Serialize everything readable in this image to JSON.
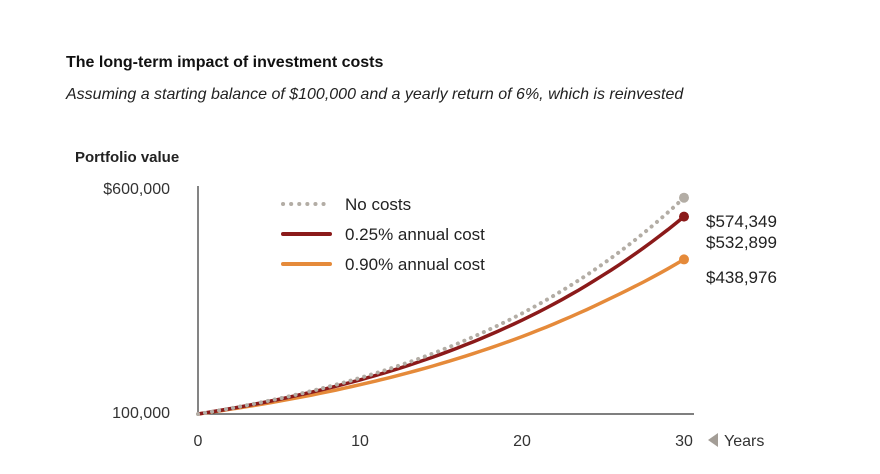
{
  "chart_data": {
    "type": "line",
    "title": "The long-term impact of investment costs",
    "subtitle": "Assuming a starting balance of $100,000 and a yearly return of 6%, which is reinvested",
    "ylabel": "Portfolio value",
    "xlabel": "Years",
    "xlim": [
      0,
      30
    ],
    "ylim": [
      100000,
      600000
    ],
    "x_ticks": [
      0,
      10,
      20,
      30
    ],
    "x_tick_labels": [
      "0",
      "10",
      "20",
      "30"
    ],
    "y_tick_labels": [
      "100,000",
      "$600,000"
    ],
    "y_ticks": [
      100000,
      600000
    ],
    "grid": false,
    "legend_position": "top-left",
    "series": [
      {
        "name": "No costs",
        "style": "dotted",
        "color": "#b3ada5",
        "x": [
          0,
          5,
          10,
          15,
          20,
          25,
          30
        ],
        "values": [
          100000,
          133823,
          179085,
          239656,
          320714,
          429187,
          574349
        ],
        "end_label": "$574,349"
      },
      {
        "name": "0.25% annual cost",
        "style": "solid",
        "color": "#8b1a1a",
        "x": [
          0,
          5,
          10,
          15,
          20,
          25,
          30
        ],
        "values": [
          100000,
          132235,
          174861,
          231227,
          305764,
          404328,
          532899
        ],
        "end_label": "$532,899"
      },
      {
        "name": "0.90% annual cost",
        "style": "solid",
        "color": "#e58a3a",
        "x": [
          0,
          5,
          10,
          15,
          20,
          25,
          30
        ],
        "values": [
          100000,
          128159,
          164248,
          210500,
          269777,
          345746,
          438976
        ],
        "end_label": "$438,976"
      }
    ]
  }
}
